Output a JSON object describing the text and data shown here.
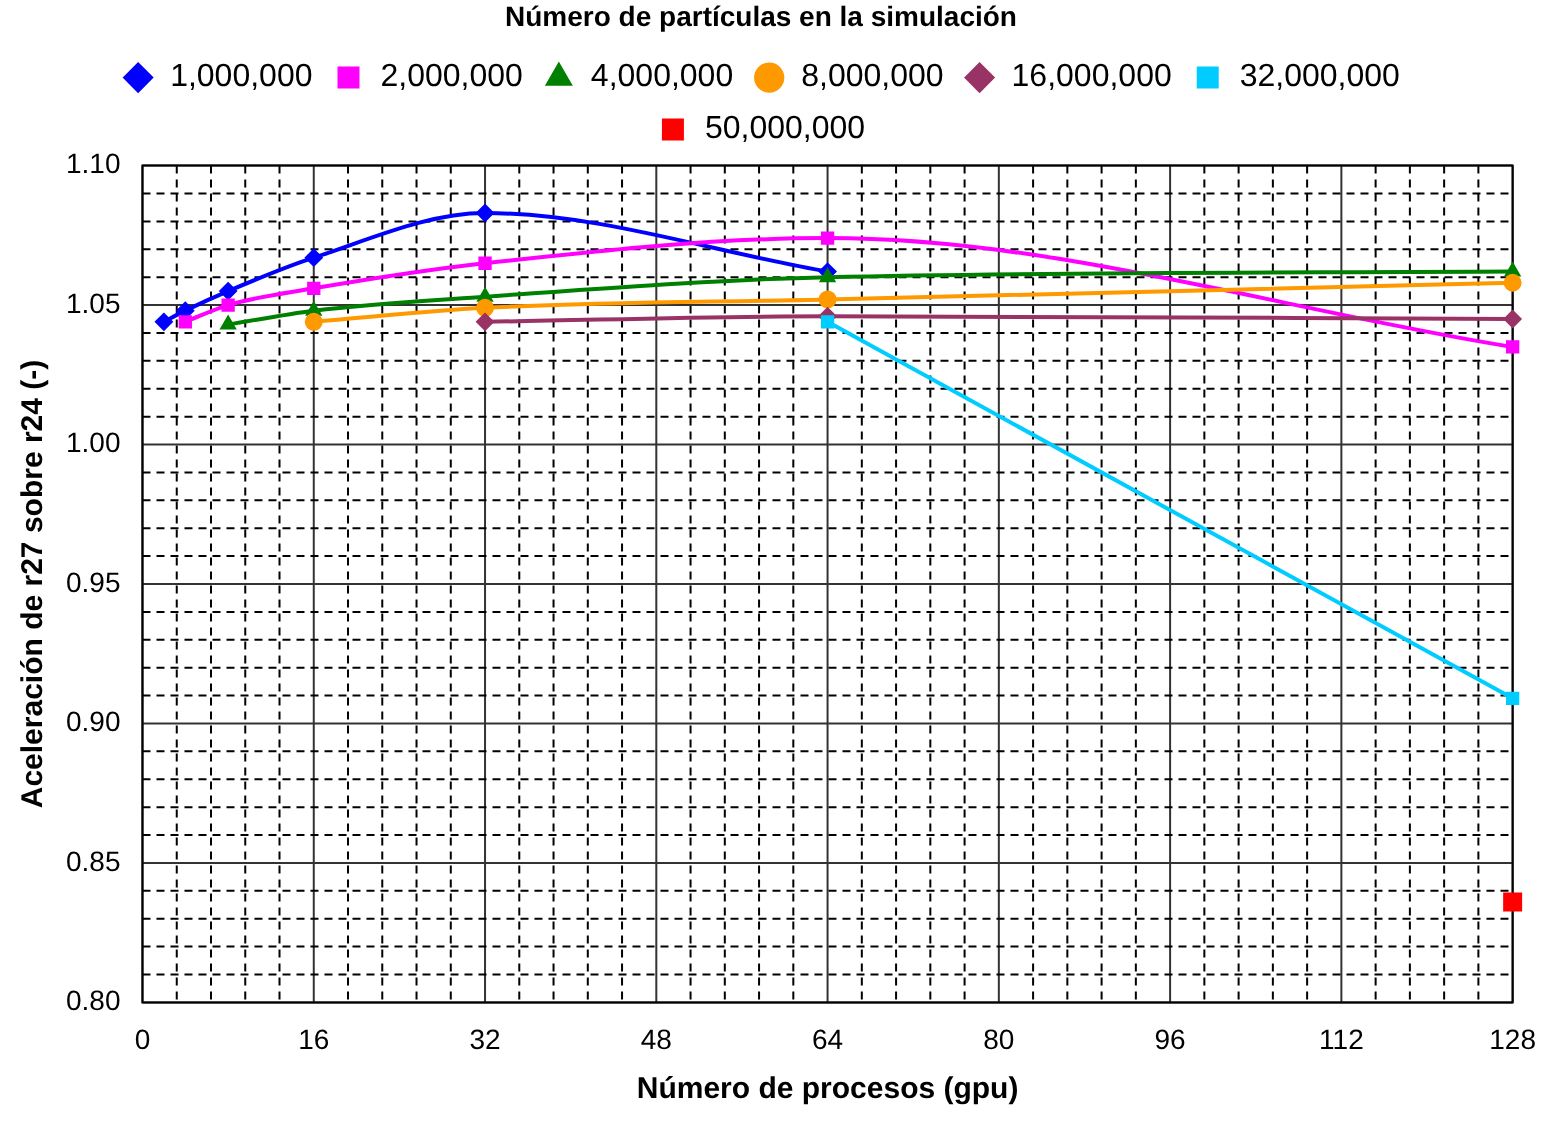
{
  "chart_data": {
    "type": "line",
    "legend_title": "Número de partículas en la simulación",
    "xlabel": "Número de procesos (gpu)",
    "ylabel": "Aceleración de r27 sobre r24 (-)",
    "legend": "top",
    "grid": true,
    "line_style": "solid",
    "xlim": [
      0,
      128
    ],
    "ylim": [
      0.8,
      1.1
    ],
    "xticks": [
      0,
      {
        "value": 3.2,
        "label": null
      },
      {
        "value": 6.4,
        "label": null
      },
      {
        "value": 9.6,
        "label": null
      },
      {
        "value": 12.8,
        "label": null
      },
      16,
      {
        "value": 19.2,
        "label": null
      },
      {
        "value": 22.4,
        "label": null
      },
      {
        "value": 25.6,
        "label": null
      },
      {
        "value": 28.8,
        "label": null
      },
      32,
      {
        "value": 35.2,
        "label": null
      },
      {
        "value": 38.4,
        "label": null
      },
      {
        "value": 41.6,
        "label": null
      },
      {
        "value": 44.8,
        "label": null
      },
      48,
      {
        "value": 51.2,
        "label": null
      },
      {
        "value": 54.4,
        "label": null
      },
      {
        "value": 57.6,
        "label": null
      },
      {
        "value": 60.8,
        "label": null
      },
      64,
      {
        "value": 67.2,
        "label": null
      },
      {
        "value": 70.4,
        "label": null
      },
      {
        "value": 73.6,
        "label": null
      },
      {
        "value": 76.8,
        "label": null
      },
      80,
      {
        "value": 83.2,
        "label": null
      },
      {
        "value": 86.4,
        "label": null
      },
      {
        "value": 89.6,
        "label": null
      },
      {
        "value": 92.8,
        "label": null
      },
      96,
      {
        "value": 99.2,
        "label": null
      },
      {
        "value": 102.4,
        "label": null
      },
      {
        "value": 105.6,
        "label": null
      },
      {
        "value": 108.8,
        "label": null
      },
      112,
      {
        "value": 115.2,
        "label": null
      },
      {
        "value": 118.4,
        "label": null
      },
      {
        "value": 121.6,
        "label": null
      },
      {
        "value": 124.8,
        "label": null
      },
      128
    ],
    "yticks": [
      {
        "value": 0.8,
        "label": "0.80"
      },
      {
        "value": 0.81,
        "label": null
      },
      {
        "value": 0.82,
        "label": null
      },
      {
        "value": 0.83,
        "label": null
      },
      {
        "value": 0.84,
        "label": null
      },
      0.85,
      {
        "value": 0.86,
        "label": null
      },
      {
        "value": 0.87,
        "label": null
      },
      {
        "value": 0.88,
        "label": null
      },
      {
        "value": 0.89,
        "label": null
      },
      {
        "value": 0.9,
        "label": "0.90"
      },
      {
        "value": 0.91,
        "label": null
      },
      {
        "value": 0.92,
        "label": null
      },
      {
        "value": 0.93,
        "label": null
      },
      {
        "value": 0.94,
        "label": null
      },
      0.95,
      {
        "value": 0.96,
        "label": null
      },
      {
        "value": 0.97,
        "label": null
      },
      {
        "value": 0.98,
        "label": null
      },
      {
        "value": 0.99,
        "label": null
      },
      {
        "value": 1.0,
        "label": "1.00"
      },
      {
        "value": 1.01,
        "label": null
      },
      {
        "value": 1.02,
        "label": null
      },
      {
        "value": 1.03,
        "label": null
      },
      {
        "value": 1.04,
        "label": null
      },
      1.05,
      {
        "value": 1.06,
        "label": null
      },
      {
        "value": 1.07,
        "label": null
      },
      {
        "value": 1.08,
        "label": null
      },
      {
        "value": 1.09,
        "label": null
      },
      {
        "value": 1.1,
        "label": "1.10"
      }
    ],
    "series": [
      {
        "name": "1,000,000",
        "color": "#0000ff",
        "marker": "diamond",
        "x": [
          2,
          4,
          8,
          16,
          32,
          64
        ],
        "values": [
          1.044,
          1.048,
          1.055,
          1.067,
          1.083,
          1.062
        ]
      },
      {
        "name": "2,000,000",
        "color": "#ff00ff",
        "marker": "square",
        "x": [
          4,
          8,
          16,
          32,
          64,
          128
        ],
        "values": [
          1.044,
          1.05,
          1.056,
          1.065,
          1.074,
          1.035
        ]
      },
      {
        "name": "4,000,000",
        "color": "#008000",
        "marker": "triangle",
        "x": [
          8,
          16,
          32,
          64,
          128
        ],
        "values": [
          1.043,
          1.048,
          1.053,
          1.06,
          1.062
        ]
      },
      {
        "name": "8,000,000",
        "color": "#ff9900",
        "marker": "circle",
        "x": [
          16,
          32,
          64,
          128
        ],
        "values": [
          1.044,
          1.049,
          1.052,
          1.058
        ]
      },
      {
        "name": "16,000,000",
        "color": "#993366",
        "marker": "diamond",
        "x": [
          32,
          64,
          128
        ],
        "values": [
          1.044,
          1.046,
          1.045
        ]
      },
      {
        "name": "32,000,000",
        "color": "#00ccff",
        "marker": "square",
        "x": [
          64,
          128
        ],
        "values": [
          1.044,
          0.909
        ]
      },
      {
        "name": "50,000,000",
        "color": "#ff0000",
        "marker": "square",
        "x": [
          128
        ],
        "values": [
          0.836
        ]
      }
    ]
  }
}
